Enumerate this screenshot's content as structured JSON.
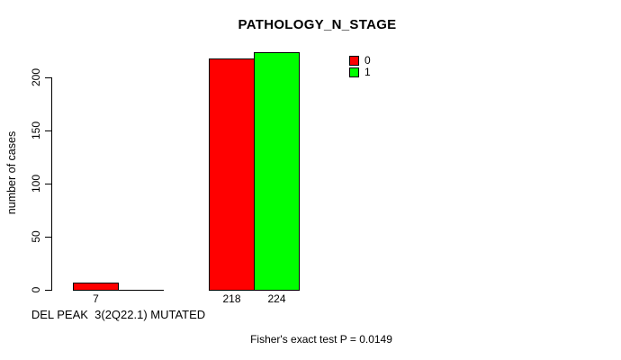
{
  "title": "PATHOLOGY_N_STAGE",
  "y_axis": {
    "label": "number of cases",
    "tick_labels": [
      "0",
      "50",
      "100",
      "150",
      "200"
    ]
  },
  "x_axis": {
    "group_label": "DEL PEAK  3(2Q22.1) MUTATED"
  },
  "legend": {
    "items": [
      {
        "label": "0",
        "color": "#ff0000"
      },
      {
        "label": "1",
        "color": "#00ff00"
      }
    ]
  },
  "annotation": "Fisher's exact test P = 0.0149",
  "chart_data": {
    "type": "bar",
    "title": "PATHOLOGY_N_STAGE",
    "xlabel": "DEL PEAK  3(2Q22.1) MUTATED",
    "ylabel": "number of cases",
    "ylim": [
      0,
      200
    ],
    "yticks": [
      0,
      50,
      100,
      150,
      200
    ],
    "grid": false,
    "legend_position": "top-right-inside",
    "categories": [
      "DEL PEAK  3(2Q22.1) MUTATED",
      ""
    ],
    "series": [
      {
        "name": "0",
        "color": "#ff0000",
        "values": [
          7,
          218
        ],
        "value_labels": [
          "7",
          "218"
        ]
      },
      {
        "name": "1",
        "color": "#00ff00",
        "values": [
          0,
          224
        ],
        "value_labels": [
          "",
          "224"
        ]
      }
    ],
    "annotation": "Fisher's exact test P = 0.0149"
  }
}
